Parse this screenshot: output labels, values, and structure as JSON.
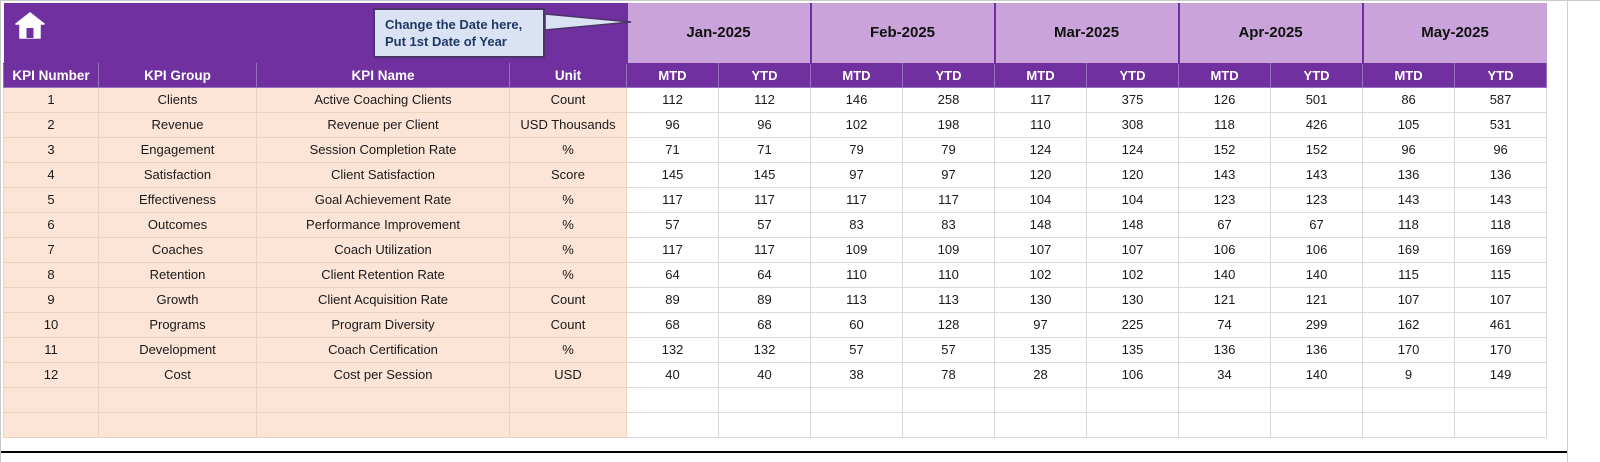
{
  "callout": {
    "line1": "Change the Date here,",
    "line2": "Put 1st Date of Year"
  },
  "months": [
    "Jan-2025",
    "Feb-2025",
    "Mar-2025",
    "Apr-2025",
    "May-2025"
  ],
  "columns": [
    "KPI Number",
    "KPI Group",
    "KPI Name",
    "Unit"
  ],
  "subheaders": [
    "MTD",
    "YTD"
  ],
  "rows": [
    {
      "number": "1",
      "group": "Clients",
      "name": "Active Coaching Clients",
      "unit": "Count",
      "values": [
        112,
        112,
        146,
        258,
        117,
        375,
        126,
        501,
        86,
        587
      ]
    },
    {
      "number": "2",
      "group": "Revenue",
      "name": "Revenue per Client",
      "unit": "USD Thousands",
      "values": [
        96,
        96,
        102,
        198,
        110,
        308,
        118,
        426,
        105,
        531
      ]
    },
    {
      "number": "3",
      "group": "Engagement",
      "name": "Session Completion Rate",
      "unit": "%",
      "values": [
        71,
        71,
        79,
        79,
        124,
        124,
        152,
        152,
        96,
        96
      ]
    },
    {
      "number": "4",
      "group": "Satisfaction",
      "name": "Client Satisfaction",
      "unit": "Score",
      "values": [
        145,
        145,
        97,
        97,
        120,
        120,
        143,
        143,
        136,
        136
      ]
    },
    {
      "number": "5",
      "group": "Effectiveness",
      "name": "Goal Achievement Rate",
      "unit": "%",
      "values": [
        117,
        117,
        117,
        117,
        104,
        104,
        123,
        123,
        143,
        143
      ]
    },
    {
      "number": "6",
      "group": "Outcomes",
      "name": "Performance Improvement",
      "unit": "%",
      "values": [
        57,
        57,
        83,
        83,
        148,
        148,
        67,
        67,
        118,
        118
      ]
    },
    {
      "number": "7",
      "group": "Coaches",
      "name": "Coach Utilization",
      "unit": "%",
      "values": [
        117,
        117,
        109,
        109,
        107,
        107,
        106,
        106,
        169,
        169
      ]
    },
    {
      "number": "8",
      "group": "Retention",
      "name": "Client Retention Rate",
      "unit": "%",
      "values": [
        64,
        64,
        110,
        110,
        102,
        102,
        140,
        140,
        115,
        115
      ]
    },
    {
      "number": "9",
      "group": "Growth",
      "name": "Client Acquisition Rate",
      "unit": "Count",
      "values": [
        89,
        89,
        113,
        113,
        130,
        130,
        121,
        121,
        107,
        107
      ]
    },
    {
      "number": "10",
      "group": "Programs",
      "name": "Program Diversity",
      "unit": "Count",
      "values": [
        68,
        68,
        60,
        128,
        97,
        225,
        74,
        299,
        162,
        461
      ]
    },
    {
      "number": "11",
      "group": "Development",
      "name": "Coach Certification",
      "unit": "%",
      "values": [
        132,
        132,
        57,
        57,
        135,
        135,
        136,
        136,
        170,
        170
      ]
    },
    {
      "number": "12",
      "group": "Cost",
      "name": "Cost per Session",
      "unit": "USD",
      "values": [
        40,
        40,
        38,
        78,
        28,
        106,
        34,
        140,
        9,
        149
      ]
    }
  ],
  "empty_row_count": 2,
  "colors": {
    "header_dark_purple": "#7030a0",
    "header_light_purple": "#c9a3d9",
    "row_peach": "#fce4d6",
    "callout_bg": "#dae3f3",
    "callout_border": "#4a3566",
    "callout_text": "#203864"
  }
}
